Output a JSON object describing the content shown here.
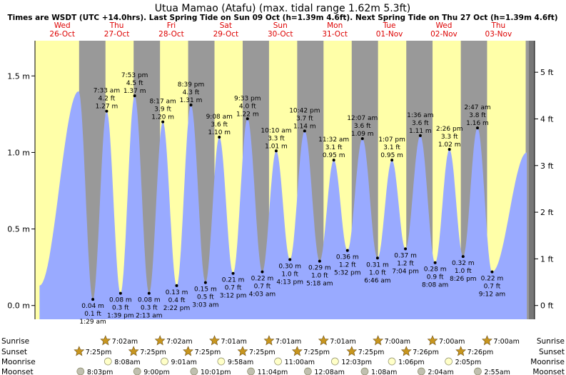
{
  "title": "Utua Mamao (Atafu) (max. tidal range 1.62m 5.3ft)",
  "subtitle": "Times are WSDT (UTC +14.0hrs). Last Spring Tide on Sun 09 Oct (h=1.39m 4.6ft). Next Spring Tide on Thu 27 Oct (h=1.39m 4.6ft)",
  "colors": {
    "day": "#ffffa8",
    "night": "#999999",
    "water": "#99aaff",
    "date_header": "#dd0000",
    "star_fill": "#c8961e",
    "moon_rise": "#ffffc8",
    "moon_set": "#c0c0b0"
  },
  "days": [
    {
      "dow": "Wed",
      "date": "26-Oct"
    },
    {
      "dow": "Thu",
      "date": "27-Oct"
    },
    {
      "dow": "Fri",
      "date": "28-Oct"
    },
    {
      "dow": "Sat",
      "date": "29-Oct"
    },
    {
      "dow": "Sun",
      "date": "30-Oct"
    },
    {
      "dow": "Mon",
      "date": "31-Oct"
    },
    {
      "dow": "Tue",
      "date": "01-Nov"
    },
    {
      "dow": "Wed",
      "date": "02-Nov"
    },
    {
      "dow": "Thu",
      "date": "03-Nov"
    }
  ],
  "chart_data": {
    "type": "area",
    "y_left_unit": "m",
    "y_right_unit": "ft",
    "ylim": [
      -0.09,
      1.73
    ],
    "y_left_ticks": [
      {
        "v": 0.0,
        "label": "0.0 m"
      },
      {
        "v": 0.5,
        "label": "0.5 m"
      },
      {
        "v": 1.0,
        "label": "1.0 m"
      },
      {
        "v": 1.5,
        "label": "1.5 m"
      }
    ],
    "y_right_ticks": [
      {
        "v": 0.0,
        "label": "0 ft"
      },
      {
        "v": 0.3048,
        "label": "1 ft"
      },
      {
        "v": 0.6096,
        "label": "2 ft"
      },
      {
        "v": 0.9144,
        "label": "3 ft"
      },
      {
        "v": 1.2192,
        "label": "4 ft"
      },
      {
        "v": 1.524,
        "label": "5 ft"
      }
    ],
    "curve_start": {
      "t": 2.0,
      "h": 0.13
    },
    "curve_end": {
      "t": 216.5,
      "h": 1.0
    },
    "tides": [
      {
        "t": 19.2,
        "h": 1.4,
        "type": "high"
      },
      {
        "t": 25.48,
        "h": 0.04,
        "type": "low",
        "time": "1:29 am",
        "m": "0.04 m",
        "ft": "0.1 ft"
      },
      {
        "t": 31.55,
        "h": 1.27,
        "type": "high",
        "time": "7:33 am",
        "m": "1.27 m",
        "ft": "4.2 ft"
      },
      {
        "t": 37.65,
        "h": 0.08,
        "type": "low",
        "time": "1:39 pm",
        "m": "0.08 m",
        "ft": "0.3 ft"
      },
      {
        "t": 43.88,
        "h": 1.37,
        "type": "high",
        "time": "7:53 pm",
        "m": "1.37 m",
        "ft": "4.5 ft"
      },
      {
        "t": 50.22,
        "h": 0.08,
        "type": "low",
        "time": "2:13 am",
        "m": "0.08 m",
        "ft": "0.3 ft"
      },
      {
        "t": 56.28,
        "h": 1.2,
        "type": "high",
        "time": "8:17 am",
        "m": "1.20 m",
        "ft": "3.9 ft"
      },
      {
        "t": 62.37,
        "h": 0.13,
        "type": "low",
        "time": "2:22 pm",
        "m": "0.13 m",
        "ft": "0.4 ft"
      },
      {
        "t": 68.65,
        "h": 1.31,
        "type": "high",
        "time": "8:39 pm",
        "m": "1.31 m",
        "ft": "4.3 ft"
      },
      {
        "t": 75.05,
        "h": 0.15,
        "type": "low",
        "time": "3:03 am",
        "m": "0.15 m",
        "ft": "0.5 ft"
      },
      {
        "t": 81.13,
        "h": 1.1,
        "type": "high",
        "time": "9:08 am",
        "m": "1.10 m",
        "ft": "3.6 ft"
      },
      {
        "t": 87.2,
        "h": 0.21,
        "type": "low",
        "time": "3:12 pm",
        "m": "0.21 m",
        "ft": "0.7 ft"
      },
      {
        "t": 93.55,
        "h": 1.22,
        "type": "high",
        "time": "9:33 pm",
        "m": "1.22 m",
        "ft": "4.0 ft"
      },
      {
        "t": 100.05,
        "h": 0.22,
        "type": "low",
        "time": "4:03 am",
        "m": "0.22 m",
        "ft": "0.7 ft"
      },
      {
        "t": 106.17,
        "h": 1.01,
        "type": "high",
        "time": "10:10 am",
        "m": "1.01 m",
        "ft": "3.3 ft"
      },
      {
        "t": 112.22,
        "h": 0.3,
        "type": "low",
        "time": "4:13 pm",
        "m": "0.30 m",
        "ft": "1.0 ft"
      },
      {
        "t": 118.7,
        "h": 1.14,
        "type": "high",
        "time": "10:42 pm",
        "m": "1.14 m",
        "ft": "3.7 ft"
      },
      {
        "t": 125.3,
        "h": 0.29,
        "type": "low",
        "time": "5:18 am",
        "m": "0.29 m",
        "ft": "1.0 ft"
      },
      {
        "t": 131.53,
        "h": 0.95,
        "type": "high",
        "time": "11:32 am",
        "m": "0.95 m",
        "ft": "3.1 ft"
      },
      {
        "t": 137.53,
        "h": 0.36,
        "type": "low",
        "time": "5:32 pm",
        "m": "0.36 m",
        "ft": "1.2 ft"
      },
      {
        "t": 144.12,
        "h": 1.09,
        "type": "high",
        "time": "12:07 am",
        "m": "1.09 m",
        "ft": "3.6 ft"
      },
      {
        "t": 150.77,
        "h": 0.31,
        "type": "low",
        "time": "6:46 am",
        "m": "0.31 m",
        "ft": "1.0 ft"
      },
      {
        "t": 157.12,
        "h": 0.95,
        "type": "high",
        "time": "1:07 pm",
        "m": "0.95 m",
        "ft": "3.1 ft"
      },
      {
        "t": 163.07,
        "h": 0.37,
        "type": "low",
        "time": "7:04 pm",
        "m": "0.37 m",
        "ft": "1.2 ft"
      },
      {
        "t": 169.6,
        "h": 1.11,
        "type": "high",
        "time": "1:36 am",
        "m": "1.11 m",
        "ft": "3.6 ft"
      },
      {
        "t": 176.13,
        "h": 0.28,
        "type": "low",
        "time": "8:08 am",
        "m": "0.28 m",
        "ft": "0.9 ft"
      },
      {
        "t": 182.43,
        "h": 1.02,
        "type": "high",
        "time": "2:26 pm",
        "m": "1.02 m",
        "ft": "3.3 ft"
      },
      {
        "t": 188.43,
        "h": 0.32,
        "type": "low",
        "time": "8:26 pm",
        "m": "0.32 m",
        "ft": "1.0 ft"
      },
      {
        "t": 194.78,
        "h": 1.16,
        "type": "high",
        "time": "2:47 am",
        "m": "1.16 m",
        "ft": "3.8 ft"
      },
      {
        "t": 201.2,
        "h": 0.22,
        "type": "low",
        "time": "9:12 am",
        "m": "0.22 m",
        "ft": "0.7 ft"
      }
    ],
    "sunrise": [
      "7:02am",
      "7:02am",
      "7:01am",
      "7:01am",
      "7:01am",
      "7:00am",
      "7:00am",
      "7:00am"
    ],
    "sunset": [
      "7:25pm",
      "7:25pm",
      "7:25pm",
      "7:25pm",
      "7:25pm",
      "7:25pm",
      "7:26pm",
      "7:26pm"
    ],
    "moonrise": [
      "8:08am",
      "9:01am",
      "9:58am",
      "11:00am",
      "12:03pm",
      "1:06pm",
      "2:05pm"
    ],
    "moonset": [
      "8:03pm",
      "9:00pm",
      "10:01pm",
      "11:04pm",
      "12:08am",
      "1:08am",
      "2:04am",
      "2:55am"
    ]
  },
  "row_labels": {
    "sunrise": "Sunrise",
    "sunset": "Sunset",
    "moonrise": "Moonrise",
    "moonset": "Moonset"
  }
}
